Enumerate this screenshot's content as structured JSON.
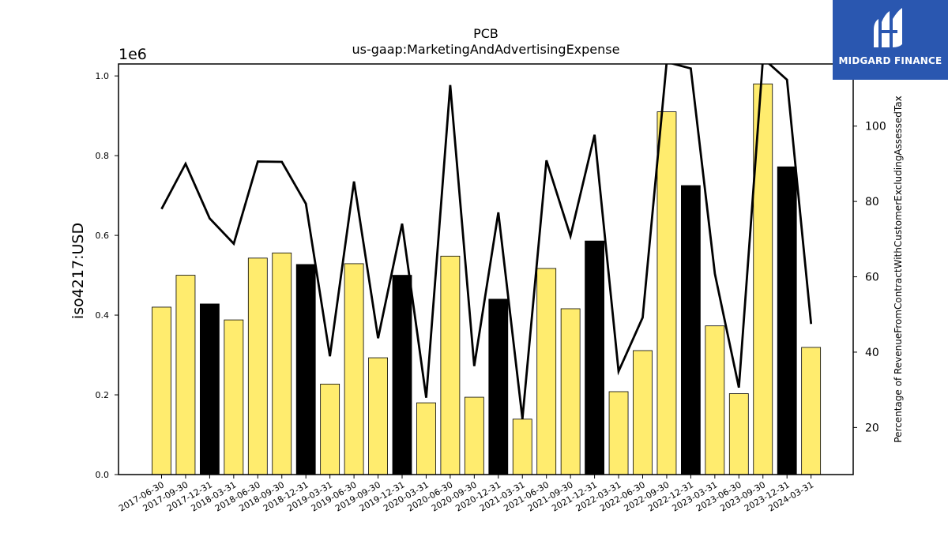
{
  "brand": {
    "name": "MIDGARD FINANCE",
    "bg_color": "#2a57b0"
  },
  "chart_data": {
    "type": "bar",
    "title": "PCB",
    "subtitle": "us-gaap:MarketingAndAdvertisingExpense",
    "ylabel": "iso4217:USD",
    "ylabel_right": "Percentage of RevenueFromContractWithCustomerExcludingAssessedTax",
    "y_offset_label": "1e6",
    "ylim": [
      0,
      1030000
    ],
    "y2lim": [
      7.5,
      116.5
    ],
    "yticks": [
      "0.0",
      "0.2",
      "0.4",
      "0.6",
      "0.8",
      "1.0"
    ],
    "y2ticks": [
      "20",
      "40",
      "60",
      "80",
      "100"
    ],
    "categories": [
      "2017-06-30",
      "2017-09-30",
      "2017-12-31",
      "2018-03-31",
      "2018-06-30",
      "2018-09-30",
      "2018-12-31",
      "2019-03-31",
      "2019-06-30",
      "2019-09-30",
      "2019-12-31",
      "2020-03-31",
      "2020-06-30",
      "2020-09-30",
      "2020-12-31",
      "2021-03-31",
      "2021-06-30",
      "2021-09-30",
      "2021-12-31",
      "2022-03-31",
      "2022-06-30",
      "2022-09-30",
      "2022-12-31",
      "2023-03-31",
      "2023-06-30",
      "2023-09-30",
      "2023-12-31",
      "2024-03-31"
    ],
    "series": [
      {
        "axis": "left",
        "kind": "bar",
        "values": [
          420000,
          500000,
          428000,
          388000,
          543000,
          556000,
          527000,
          227000,
          529000,
          293000,
          500000,
          180000,
          548000,
          194000,
          440000,
          139000,
          517000,
          416000,
          586000,
          208000,
          311000,
          910000,
          725000,
          373000,
          203000,
          980000,
          772000,
          319000
        ],
        "colors": [
          "#ffec6e",
          "#ffec6e",
          "#000000",
          "#ffec6e",
          "#ffec6e",
          "#ffec6e",
          "#000000",
          "#ffec6e",
          "#ffec6e",
          "#ffec6e",
          "#000000",
          "#ffec6e",
          "#ffec6e",
          "#ffec6e",
          "#000000",
          "#ffec6e",
          "#ffec6e",
          "#ffec6e",
          "#000000",
          "#ffec6e",
          "#ffec6e",
          "#ffec6e",
          "#000000",
          "#ffec6e",
          "#ffec6e",
          "#ffec6e",
          "#000000",
          "#ffec6e"
        ]
      },
      {
        "axis": "right",
        "kind": "line",
        "color": "#000000",
        "values": [
          78,
          90,
          75.5,
          68.8,
          90.6,
          90.5,
          79.4,
          38.9,
          85.3,
          43.7,
          74.1,
          27.9,
          110.9,
          36.3,
          77.1,
          22.3,
          90.9,
          70.8,
          97.7,
          34.9,
          49.2,
          117,
          115.3,
          60.8,
          30.6,
          118,
          112.3,
          47.5
        ]
      }
    ],
    "grid": false,
    "legend": "none"
  }
}
